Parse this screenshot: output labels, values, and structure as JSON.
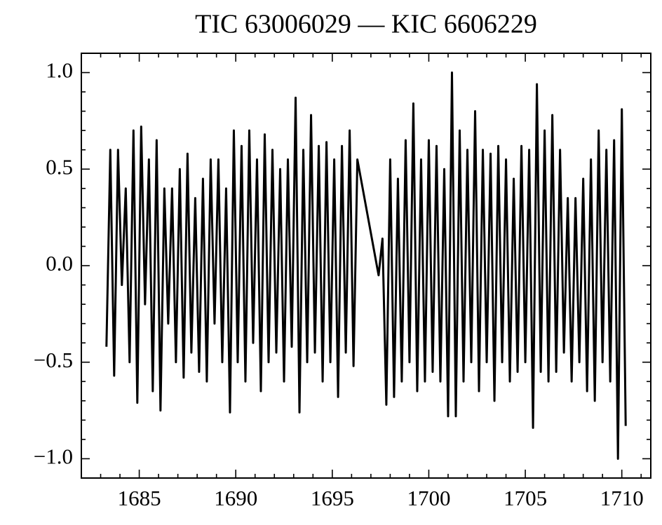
{
  "chart_data": {
    "type": "line",
    "title": "TIC 63006029 — KIC 6606229",
    "color": "#000000",
    "x": [
      1683.3,
      1683.5,
      1683.7,
      1683.9,
      1684.1,
      1684.3,
      1684.5,
      1684.7,
      1684.9,
      1685.1,
      1685.3,
      1685.5,
      1685.7,
      1685.9,
      1686.1,
      1686.3,
      1686.5,
      1686.7,
      1686.9,
      1687.1,
      1687.3,
      1687.5,
      1687.7,
      1687.9,
      1688.1,
      1688.3,
      1688.5,
      1688.7,
      1688.9,
      1689.1,
      1689.3,
      1689.5,
      1689.7,
      1689.9,
      1690.1,
      1690.3,
      1690.5,
      1690.7,
      1690.9,
      1691.1,
      1691.3,
      1691.5,
      1691.7,
      1691.9,
      1692.1,
      1692.3,
      1692.5,
      1692.7,
      1692.9,
      1693.1,
      1693.3,
      1693.5,
      1693.7,
      1693.9,
      1694.1,
      1694.3,
      1694.5,
      1694.7,
      1694.9,
      1695.1,
      1695.3,
      1695.5,
      1695.7,
      1695.9,
      1696.1,
      1696.3,
      1697.4,
      1697.6,
      1697.8,
      1698.0,
      1698.2,
      1698.4,
      1698.6,
      1698.8,
      1699.0,
      1699.2,
      1699.4,
      1699.6,
      1699.8,
      1700.0,
      1700.2,
      1700.4,
      1700.6,
      1700.8,
      1701.0,
      1701.2,
      1701.4,
      1701.6,
      1701.8,
      1702.0,
      1702.2,
      1702.4,
      1702.6,
      1702.8,
      1703.0,
      1703.2,
      1703.4,
      1703.6,
      1703.8,
      1704.0,
      1704.2,
      1704.4,
      1704.6,
      1704.8,
      1705.0,
      1705.2,
      1705.4,
      1705.6,
      1705.8,
      1706.0,
      1706.2,
      1706.4,
      1706.6,
      1706.8,
      1707.0,
      1707.2,
      1707.4,
      1707.6,
      1707.8,
      1708.0,
      1708.2,
      1708.4,
      1708.6,
      1708.8,
      1709.0,
      1709.2,
      1709.4,
      1709.6,
      1709.8,
      1710.0,
      1710.2
    ],
    "values": [
      -0.42,
      0.6,
      -0.57,
      0.6,
      -0.1,
      0.4,
      -0.5,
      0.7,
      -0.71,
      0.72,
      -0.2,
      0.55,
      -0.65,
      0.65,
      -0.75,
      0.4,
      -0.3,
      0.4,
      -0.5,
      0.5,
      -0.58,
      0.58,
      -0.45,
      0.35,
      -0.55,
      0.45,
      -0.6,
      0.55,
      -0.3,
      0.55,
      -0.5,
      0.4,
      -0.76,
      0.7,
      -0.5,
      0.62,
      -0.6,
      0.7,
      -0.4,
      0.55,
      -0.65,
      0.68,
      -0.5,
      0.6,
      -0.45,
      0.5,
      -0.6,
      0.55,
      -0.42,
      0.87,
      -0.76,
      0.6,
      -0.5,
      0.78,
      -0.45,
      0.62,
      -0.6,
      0.64,
      -0.5,
      0.55,
      -0.68,
      0.62,
      -0.45,
      0.7,
      -0.52,
      0.55,
      -0.05,
      0.14,
      -0.72,
      0.55,
      -0.68,
      0.45,
      -0.6,
      0.65,
      -0.5,
      0.84,
      -0.65,
      0.55,
      -0.6,
      0.65,
      -0.55,
      0.62,
      -0.6,
      0.5,
      -0.78,
      1.0,
      -0.78,
      0.7,
      -0.6,
      0.6,
      -0.5,
      0.8,
      -0.65,
      0.6,
      -0.5,
      0.58,
      -0.7,
      0.62,
      -0.5,
      0.55,
      -0.6,
      0.45,
      -0.55,
      0.62,
      -0.5,
      0.6,
      -0.84,
      0.94,
      -0.55,
      0.7,
      -0.6,
      0.78,
      -0.55,
      0.6,
      -0.45,
      0.35,
      -0.6,
      0.35,
      -0.5,
      0.45,
      -0.65,
      0.55,
      -0.7,
      0.7,
      -0.5,
      0.6,
      -0.6,
      0.65,
      -1.0,
      0.81,
      -0.83
    ],
    "xlim": [
      1682.0,
      1711.5
    ],
    "ylim": [
      -1.1,
      1.1
    ],
    "xticks": [
      1685,
      1690,
      1695,
      1700,
      1705,
      1710
    ],
    "yticks": [
      {
        "value": -1.0,
        "label": "−1.0"
      },
      {
        "value": -0.5,
        "label": "−0.5"
      },
      {
        "value": 0.0,
        "label": "0.0"
      },
      0.5,
      {
        "value": 1.0,
        "label": "1.0"
      }
    ],
    "xminorticks": [
      1683,
      1684,
      1686,
      1687,
      1688,
      1689,
      1691,
      1692,
      1693,
      1694,
      1696,
      1697,
      1698,
      1699,
      1701,
      1702,
      1703,
      1704,
      1706,
      1707,
      1708,
      1709,
      1711
    ],
    "yminorticks": [
      -0.9,
      -0.8,
      -0.7,
      -0.6,
      -0.4,
      -0.3,
      -0.2,
      -0.1,
      0.1,
      0.2,
      0.3,
      0.4,
      0.6,
      0.7,
      0.8,
      0.9
    ],
    "grid": false
  }
}
